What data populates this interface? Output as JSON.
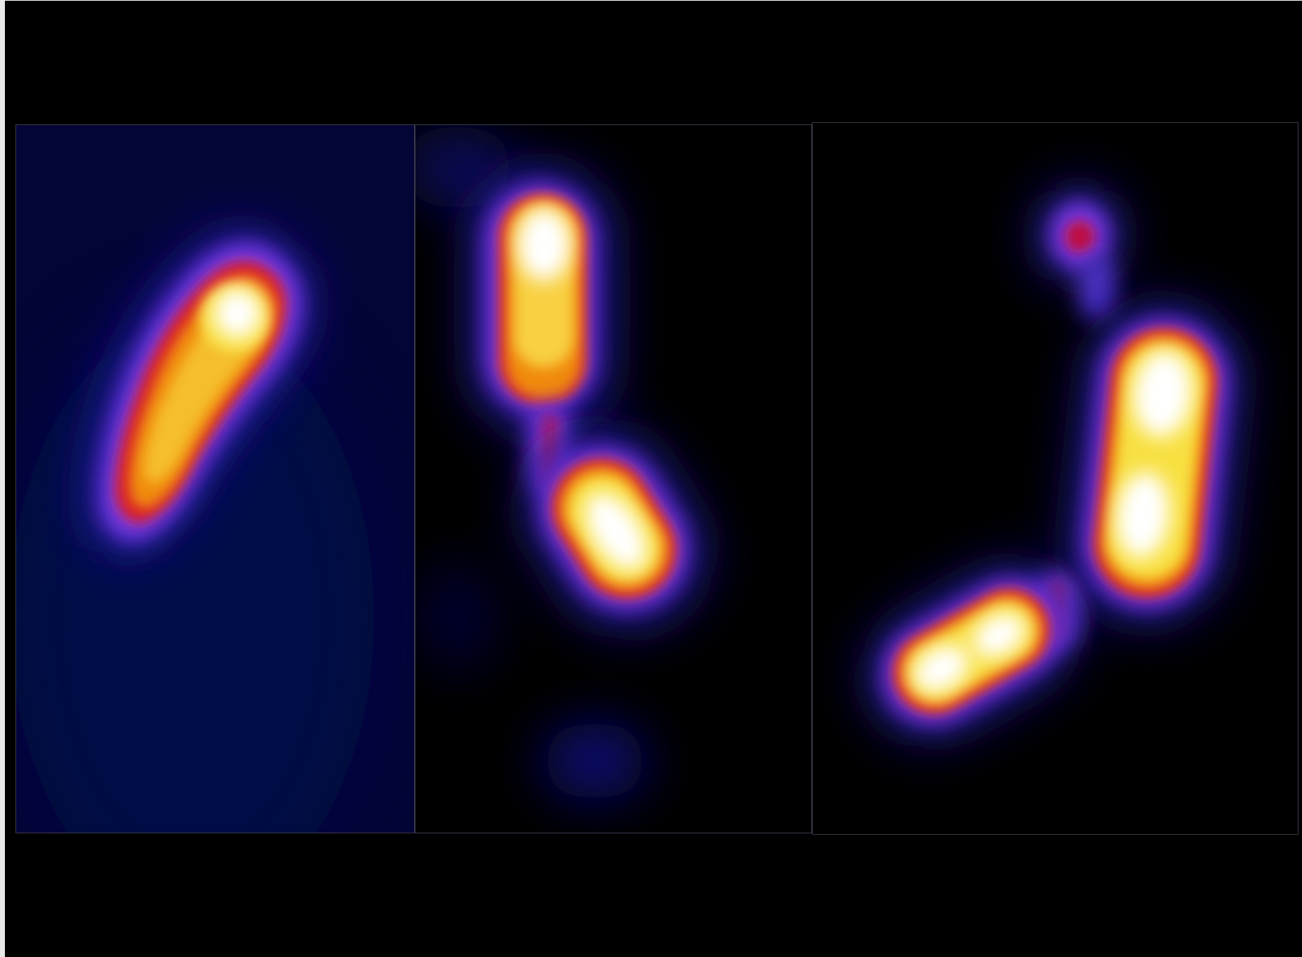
{
  "figure": {
    "panels": [
      {
        "name": "panel-1",
        "hotspots": 1
      },
      {
        "name": "panel-2",
        "hotspots": 2
      },
      {
        "name": "panel-3",
        "hotspots": 3
      }
    ]
  },
  "colors": {
    "background": "#000000",
    "glow_outer": "#1a0a7a",
    "glow_violet": "#7a3cf0",
    "glow_red": "#d81a2a",
    "glow_orange": "#f08a10",
    "glow_yellow": "#f8e040",
    "core_white": "#ffffff",
    "panel1_bg": "#030536"
  }
}
